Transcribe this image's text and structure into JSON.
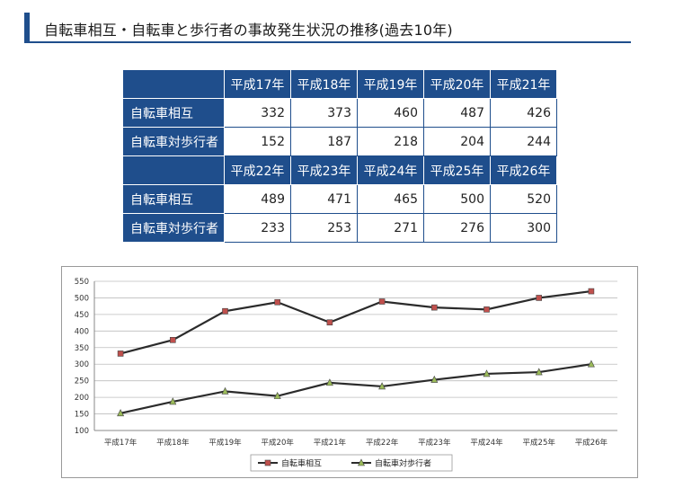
{
  "heading": "自転車相互・自転車と歩行者の事故発生状況の推移(過去10年)",
  "table": {
    "header1": [
      "平成17年",
      "平成18年",
      "平成19年",
      "平成20年",
      "平成21年"
    ],
    "rows1": [
      {
        "label": "自転車相互",
        "values": [
          "332",
          "373",
          "460",
          "487",
          "426"
        ]
      },
      {
        "label": "自転車対歩行者",
        "values": [
          "152",
          "187",
          "218",
          "204",
          "244"
        ]
      }
    ],
    "header2": [
      "平成22年",
      "平成23年",
      "平成24年",
      "平成25年",
      "平成26年"
    ],
    "rows2": [
      {
        "label": "自転車相互",
        "values": [
          "489",
          "471",
          "465",
          "500",
          "520"
        ]
      },
      {
        "label": "自転車対歩行者",
        "values": [
          "233",
          "253",
          "271",
          "276",
          "300"
        ]
      }
    ]
  },
  "chart_data": {
    "type": "line",
    "title": "",
    "xlabel": "",
    "ylabel": "",
    "categories": [
      "平成17年",
      "平成18年",
      "平成19年",
      "平成20年",
      "平成21年",
      "平成22年",
      "平成23年",
      "平成24年",
      "平成25年",
      "平成26年"
    ],
    "series": [
      {
        "name": "自転車相互",
        "values": [
          332,
          373,
          460,
          487,
          426,
          489,
          471,
          465,
          500,
          520
        ],
        "marker": "square",
        "marker_color": "#c0504d"
      },
      {
        "name": "自転車対歩行者",
        "values": [
          152,
          187,
          218,
          204,
          244,
          233,
          253,
          271,
          276,
          300
        ],
        "marker": "triangle",
        "marker_color": "#9bbb59"
      }
    ],
    "ylim": [
      100,
      550
    ],
    "yticks": [
      100,
      150,
      200,
      250,
      300,
      350,
      400,
      450,
      500,
      550
    ],
    "grid": true,
    "legend": "bottom",
    "line_color": "#2b2b2b"
  },
  "colors": {
    "accent": "#1f4e8c"
  }
}
